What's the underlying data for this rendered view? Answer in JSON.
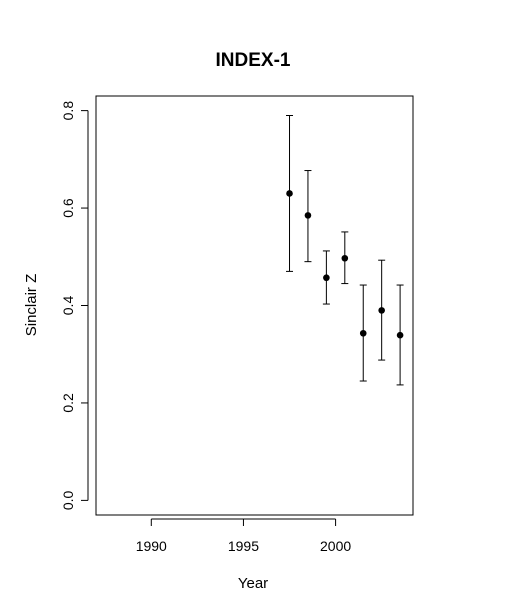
{
  "chart_data": {
    "type": "scatter",
    "title": "INDEX-1",
    "xlabel": "Year",
    "ylabel": "Sinclair Z",
    "xlim": [
      1987,
      2004.2
    ],
    "ylim": [
      -0.03,
      0.83
    ],
    "x_ticks": [
      1990,
      1995,
      2000
    ],
    "y_ticks": [
      0.0,
      0.2,
      0.4,
      0.6,
      0.8
    ],
    "x_tick_labels": [
      "1990",
      "1995",
      "2000"
    ],
    "y_tick_labels": [
      "0.0",
      "0.2",
      "0.4",
      "0.6",
      "0.8"
    ],
    "grid": false,
    "legend": "none",
    "point_color": "#000000",
    "series": [
      {
        "points": [
          {
            "x": 1997.5,
            "y": 0.63,
            "lower": 0.47,
            "upper": 0.79
          },
          {
            "x": 1998.5,
            "y": 0.585,
            "lower": 0.49,
            "upper": 0.677
          },
          {
            "x": 1999.5,
            "y": 0.457,
            "lower": 0.403,
            "upper": 0.512
          },
          {
            "x": 2000.5,
            "y": 0.497,
            "lower": 0.445,
            "upper": 0.551
          },
          {
            "x": 2001.5,
            "y": 0.343,
            "lower": 0.245,
            "upper": 0.442
          },
          {
            "x": 2002.5,
            "y": 0.39,
            "lower": 0.288,
            "upper": 0.493
          },
          {
            "x": 2003.5,
            "y": 0.339,
            "lower": 0.237,
            "upper": 0.442
          }
        ]
      }
    ]
  }
}
